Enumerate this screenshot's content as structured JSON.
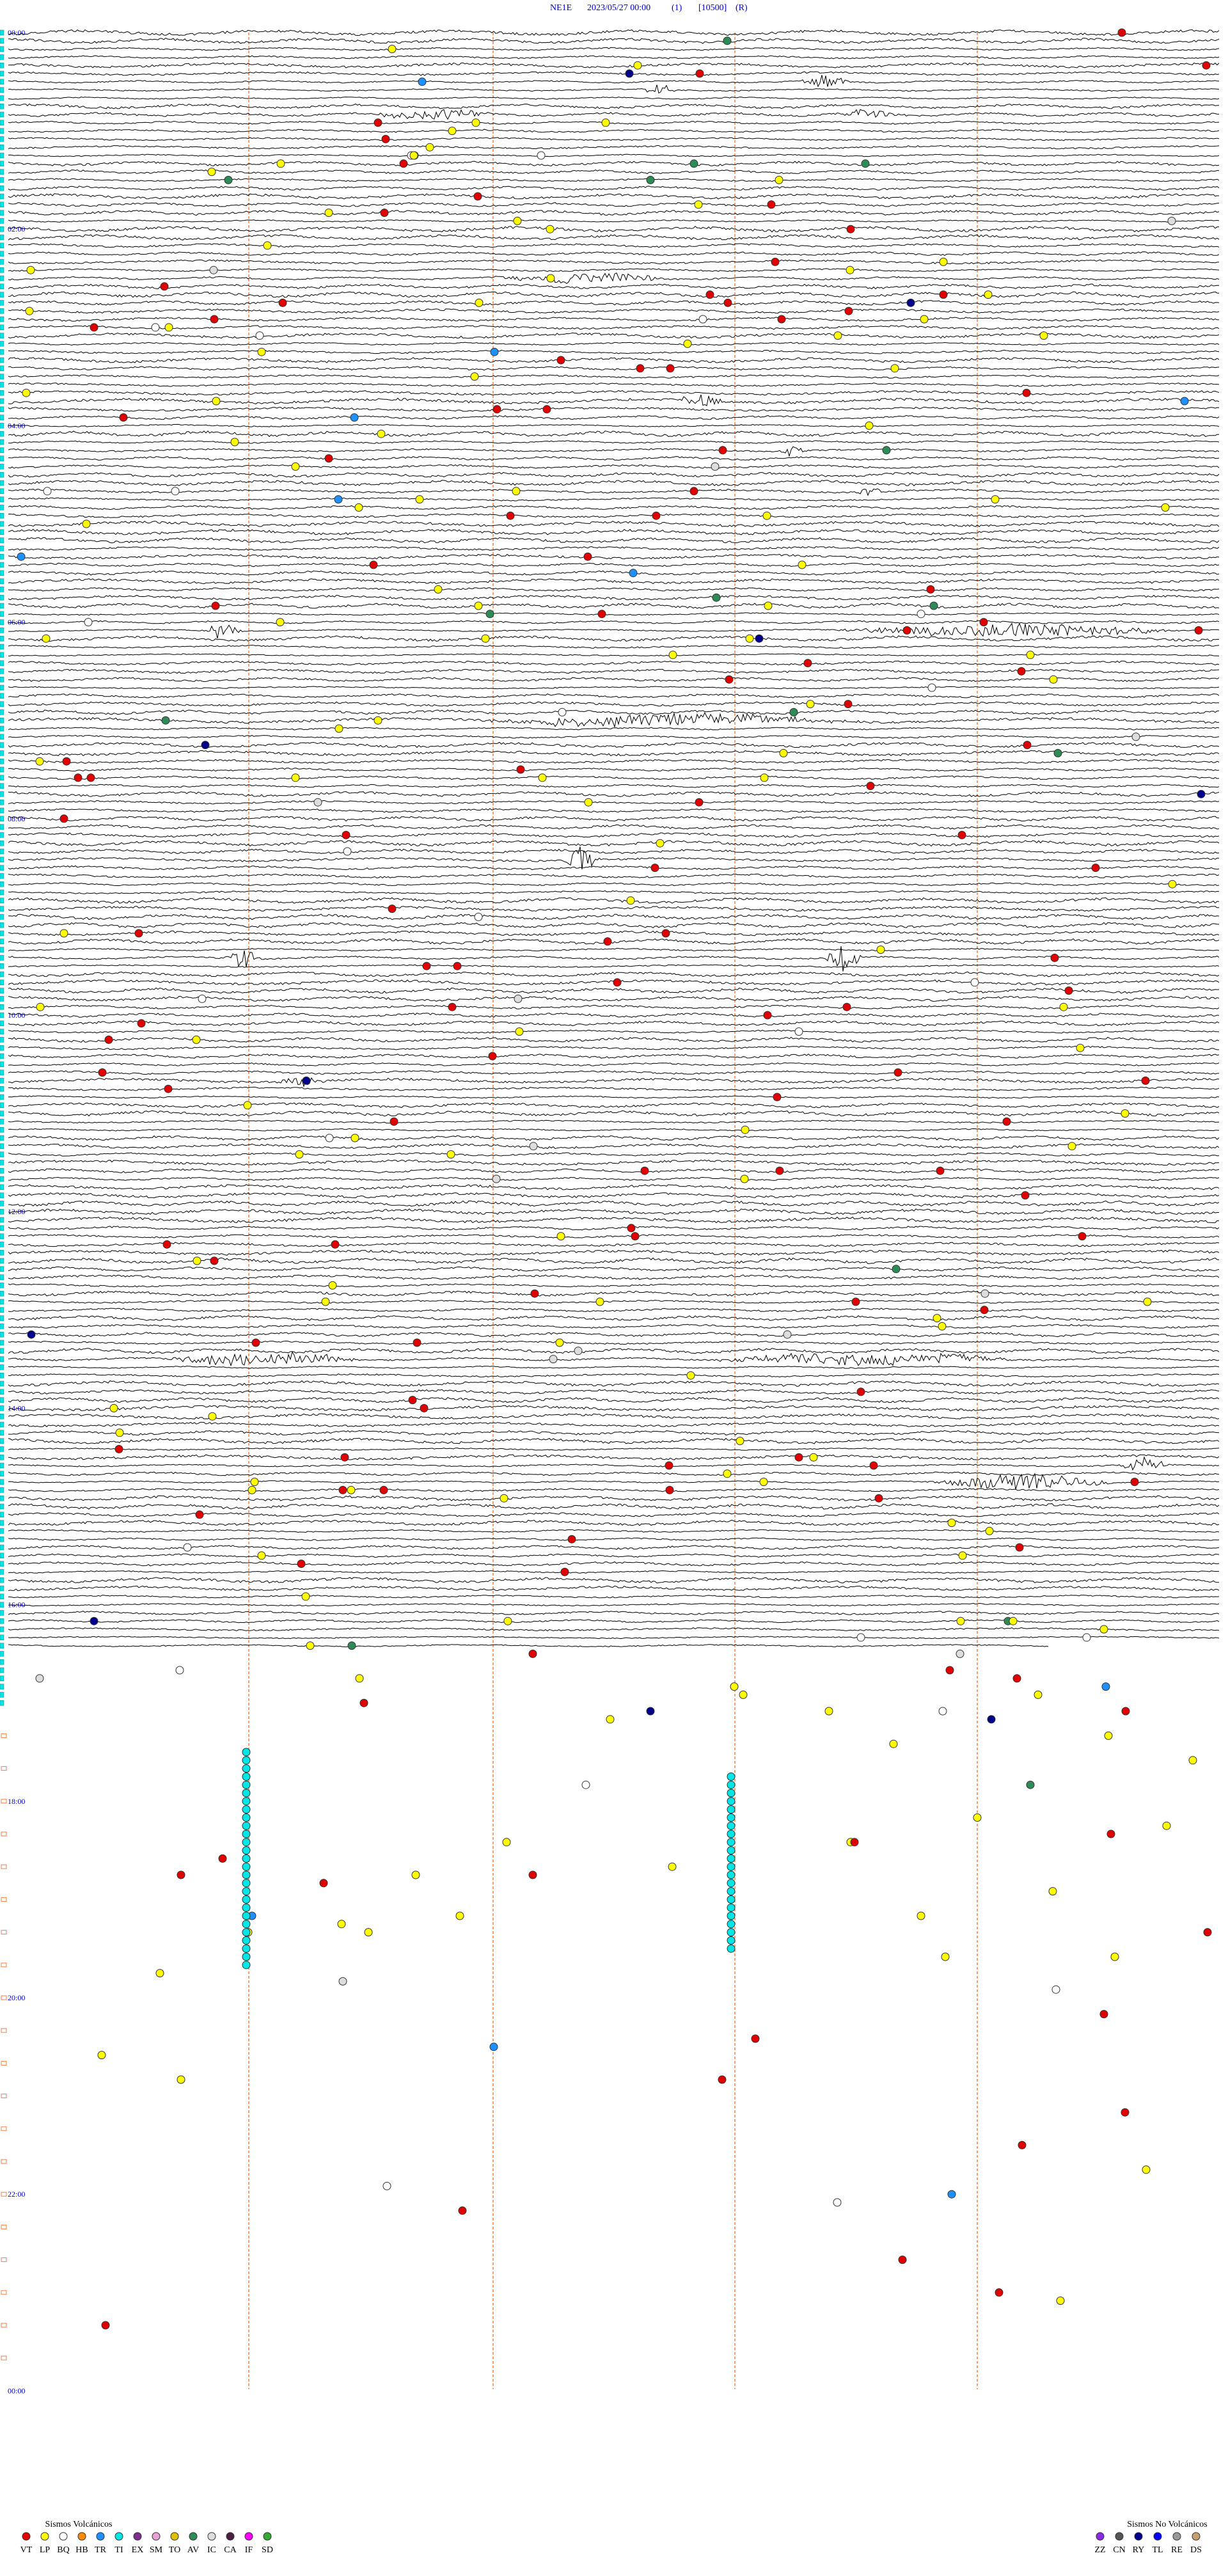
{
  "header": {
    "station": "NE1E",
    "datetime": "2023/05/27 00:00",
    "channel": "(1)",
    "scale": "[10500]",
    "mode": "(R)"
  },
  "hour_labels": [
    "00:00",
    "02:00",
    "04:00",
    "06:00",
    "08:00",
    "10:00",
    "12:00",
    "14:00",
    "16:00",
    "18:00",
    "20:00",
    "22:00",
    "00:00"
  ],
  "legend": {
    "volcanic": {
      "title": "Sismos Volcánicos",
      "items": [
        {
          "code": "VT",
          "color": "#e00000"
        },
        {
          "code": "LP",
          "color": "#ffff00"
        },
        {
          "code": "BQ",
          "color": "#ffffff"
        },
        {
          "code": "HB",
          "color": "#ff8c00"
        },
        {
          "code": "TR",
          "color": "#1e90ff"
        },
        {
          "code": "TI",
          "color": "#00e5e5"
        },
        {
          "code": "EX",
          "color": "#7b2f8f"
        },
        {
          "code": "SM",
          "color": "#e8a0d8"
        },
        {
          "code": "TO",
          "color": "#e0c000"
        },
        {
          "code": "AV",
          "color": "#2e8b57"
        },
        {
          "code": "IC",
          "color": "#dddddd"
        },
        {
          "code": "CA",
          "color": "#4b2040"
        },
        {
          "code": "IF",
          "color": "#ff00ff"
        },
        {
          "code": "SD",
          "color": "#33aa33"
        }
      ]
    },
    "non_volcanic": {
      "title": "Sismos No Volcánicos",
      "items": [
        {
          "code": "ZZ",
          "color": "#8a2be2"
        },
        {
          "code": "CN",
          "color": "#555555"
        },
        {
          "code": "RY",
          "color": "#00008b"
        },
        {
          "code": "TL",
          "color": "#0000ff"
        },
        {
          "code": "RE",
          "color": "#999999"
        },
        {
          "code": "DS",
          "color": "#c8a070"
        }
      ]
    }
  }
}
